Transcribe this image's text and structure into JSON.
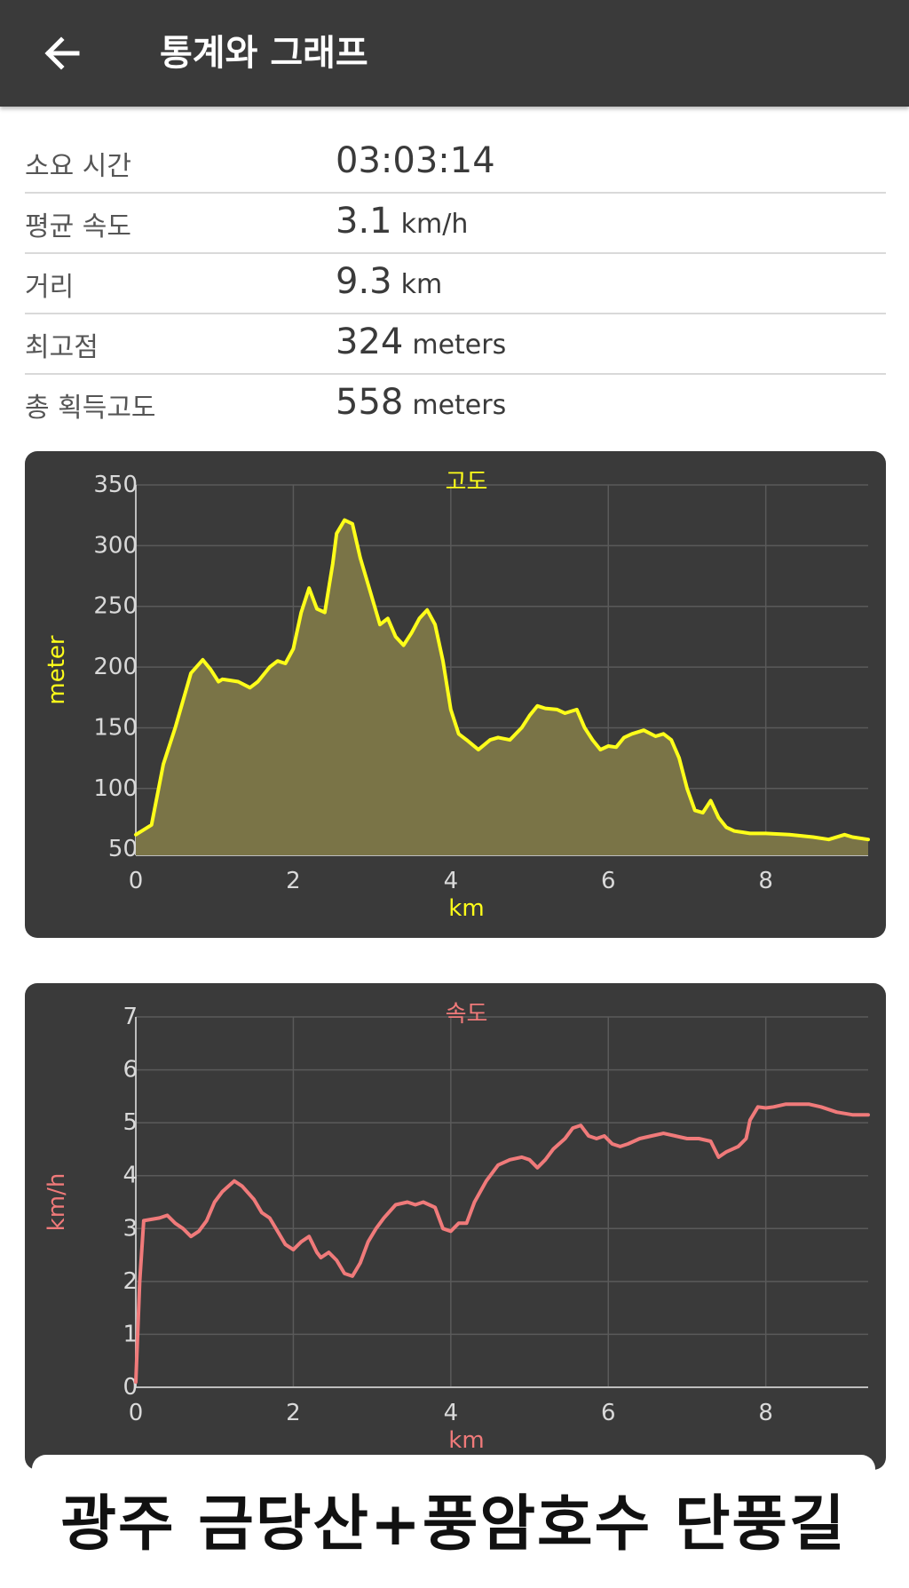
{
  "app_bar": {
    "title": "통계와 그래프",
    "back_icon": "arrow-left-icon"
  },
  "stats": [
    {
      "label": "소요 시간",
      "value": "03:03:14",
      "unit": ""
    },
    {
      "label": "평균 속도",
      "value": "3.1",
      "unit": "km/h"
    },
    {
      "label": "거리",
      "value": "9.3",
      "unit": "km"
    },
    {
      "label": "최고점",
      "value": "324",
      "unit": "meters"
    },
    {
      "label": "총 획득고도",
      "value": "558",
      "unit": "meters"
    }
  ],
  "colors": {
    "app_bar_bg": "#3a3a3a",
    "chart_bg": "#3a3a3a",
    "altitude_line": "#ffff1a",
    "altitude_fill": "#7a7447",
    "speed_line": "#f07a7a",
    "grid": "#5a5a5a",
    "tick_text": "#d9d9d9"
  },
  "chart_data": [
    {
      "type": "area",
      "title": "고도",
      "xlabel": "km",
      "ylabel": "meter",
      "xlim": [
        0,
        9.3
      ],
      "ylim": [
        45,
        350
      ],
      "x_ticks": [
        "0",
        "2",
        "4",
        "6",
        "8"
      ],
      "y_ticks": [
        "50",
        "100",
        "150",
        "200",
        "250",
        "300",
        "350"
      ],
      "grid": true,
      "series": [
        {
          "x": [
            0,
            0.2,
            0.35,
            0.5,
            0.7,
            0.85,
            0.95,
            1.05,
            1.1,
            1.2,
            1.3,
            1.45,
            1.55,
            1.7,
            1.8,
            1.9,
            2.0,
            2.1,
            2.2,
            2.3,
            2.4,
            2.5,
            2.55,
            2.65,
            2.75,
            2.85,
            2.95,
            3.1,
            3.2,
            3.3,
            3.4,
            3.5,
            3.6,
            3.7,
            3.8,
            3.9,
            4.0,
            4.1,
            4.2,
            4.35,
            4.5,
            4.6,
            4.75,
            4.9,
            5.0,
            5.1,
            5.2,
            5.35,
            5.45,
            5.6,
            5.7,
            5.8,
            5.9,
            6.0,
            6.1,
            6.2,
            6.3,
            6.45,
            6.6,
            6.7,
            6.8,
            6.9,
            7.0,
            7.1,
            7.2,
            7.3,
            7.4,
            7.5,
            7.6,
            7.7,
            7.8,
            8.0,
            8.3,
            8.6,
            8.8,
            9.0,
            9.1,
            9.3
          ],
          "y": [
            62,
            70,
            120,
            150,
            195,
            206,
            198,
            188,
            190,
            189,
            188,
            183,
            188,
            200,
            205,
            203,
            215,
            245,
            265,
            248,
            245,
            285,
            310,
            321,
            318,
            290,
            268,
            235,
            240,
            225,
            218,
            228,
            240,
            247,
            235,
            205,
            165,
            145,
            140,
            132,
            140,
            142,
            140,
            150,
            160,
            168,
            166,
            165,
            162,
            165,
            150,
            140,
            132,
            135,
            134,
            142,
            145,
            148,
            143,
            145,
            140,
            125,
            100,
            82,
            80,
            90,
            76,
            68,
            65,
            64,
            63,
            63,
            62,
            60,
            58,
            62,
            60,
            58
          ]
        }
      ]
    },
    {
      "type": "line",
      "title": "속도",
      "xlabel": "km",
      "ylabel": "km/h",
      "xlim": [
        0,
        9.3
      ],
      "ylim": [
        0,
        7
      ],
      "x_ticks": [
        "0",
        "2",
        "4",
        "6",
        "8"
      ],
      "y_ticks": [
        "0",
        "1",
        "2",
        "3",
        "4",
        "5",
        "6",
        "7"
      ],
      "grid": true,
      "series": [
        {
          "x": [
            0,
            0.05,
            0.1,
            0.3,
            0.4,
            0.5,
            0.6,
            0.7,
            0.8,
            0.9,
            1.0,
            1.1,
            1.25,
            1.35,
            1.5,
            1.6,
            1.7,
            1.8,
            1.9,
            2.0,
            2.1,
            2.2,
            2.3,
            2.35,
            2.45,
            2.55,
            2.65,
            2.75,
            2.85,
            2.95,
            3.05,
            3.15,
            3.3,
            3.45,
            3.55,
            3.65,
            3.8,
            3.9,
            4.0,
            4.1,
            4.2,
            4.3,
            4.45,
            4.6,
            4.75,
            4.9,
            5.0,
            5.1,
            5.2,
            5.3,
            5.45,
            5.55,
            5.65,
            5.75,
            5.85,
            5.95,
            6.05,
            6.15,
            6.25,
            6.4,
            6.55,
            6.7,
            6.85,
            7.0,
            7.15,
            7.3,
            7.4,
            7.5,
            7.65,
            7.75,
            7.8,
            7.9,
            8.0,
            8.1,
            8.25,
            8.4,
            8.55,
            8.7,
            8.9,
            9.1,
            9.3
          ],
          "y": [
            0.1,
            2.0,
            3.15,
            3.2,
            3.25,
            3.1,
            3.0,
            2.85,
            2.95,
            3.15,
            3.5,
            3.7,
            3.9,
            3.8,
            3.55,
            3.3,
            3.2,
            2.95,
            2.7,
            2.6,
            2.75,
            2.85,
            2.55,
            2.45,
            2.55,
            2.4,
            2.15,
            2.1,
            2.35,
            2.75,
            3.0,
            3.2,
            3.45,
            3.5,
            3.45,
            3.5,
            3.4,
            3.0,
            2.95,
            3.1,
            3.1,
            3.5,
            3.9,
            4.2,
            4.3,
            4.35,
            4.3,
            4.15,
            4.3,
            4.5,
            4.7,
            4.9,
            4.95,
            4.75,
            4.7,
            4.75,
            4.6,
            4.55,
            4.6,
            4.7,
            4.75,
            4.8,
            4.75,
            4.7,
            4.7,
            4.65,
            4.35,
            4.45,
            4.55,
            4.7,
            5.05,
            5.3,
            5.28,
            5.3,
            5.35,
            5.35,
            5.35,
            5.3,
            5.2,
            5.15,
            5.15
          ]
        }
      ]
    }
  ],
  "caption": {
    "text": "광주 금당산+풍암호수 단풍길"
  }
}
